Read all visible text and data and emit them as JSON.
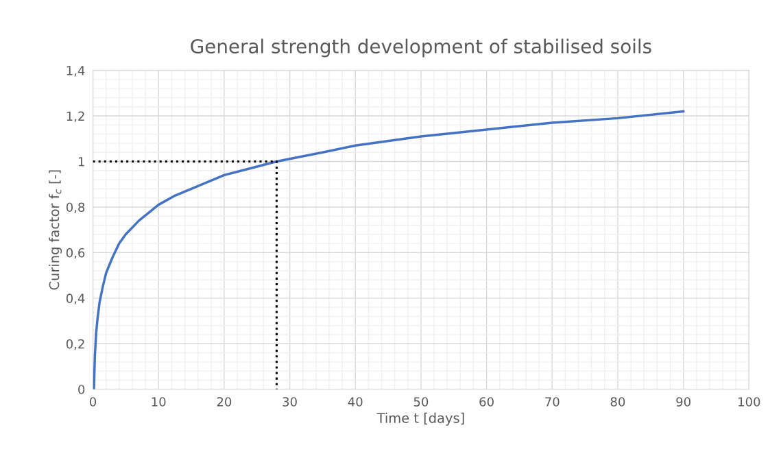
{
  "chart_data": {
    "type": "line",
    "title": "General strength development of stabilised soils",
    "xlabel": "Time t [days]",
    "ylabel": "Curing factor f$_{c}$ [-]",
    "xlim": [
      0,
      100
    ],
    "xticks": [
      0,
      10,
      20,
      30,
      40,
      50,
      60,
      70,
      80,
      90,
      100
    ],
    "ylim": [
      0,
      1.4
    ],
    "yticks": [
      0,
      {
        "value": 0.2,
        "label": "0,2"
      },
      {
        "value": 0.4,
        "label": "0,4"
      },
      {
        "value": 0.6,
        "label": "0,6"
      },
      {
        "value": 0.8,
        "label": "0,8"
      },
      1,
      {
        "value": 1.2,
        "label": "1,2"
      },
      {
        "value": 1.4,
        "label": "1,4"
      }
    ],
    "grid": true,
    "marker": "none",
    "series": [
      {
        "color": "#4472c4",
        "line_style": "solid",
        "x": [
          0.15,
          0.3,
          0.5,
          0.7,
          1,
          1.5,
          2,
          3,
          4,
          5,
          7,
          10,
          12.5,
          15,
          20,
          24,
          28,
          35,
          40,
          50,
          60,
          70,
          80,
          90
        ],
        "values": [
          0,
          0.15,
          0.25,
          0.31,
          0.38,
          0.45,
          0.51,
          0.58,
          0.64,
          0.68,
          0.74,
          0.81,
          0.85,
          0.88,
          0.94,
          0.97,
          1.0,
          1.04,
          1.07,
          1.11,
          1.14,
          1.17,
          1.19,
          1.22
        ]
      },
      {
        "color": "#000000",
        "line_style": "dotted",
        "x": [
          0,
          28,
          28
        ],
        "values": [
          1,
          1,
          0
        ]
      }
    ]
  }
}
